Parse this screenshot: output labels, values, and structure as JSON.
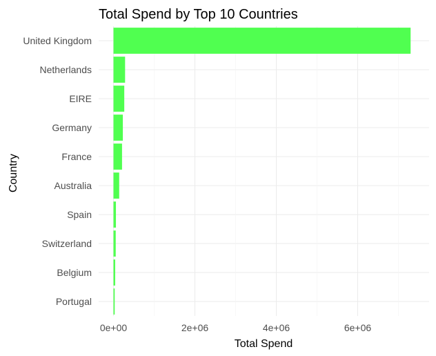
{
  "chart_data": {
    "type": "bar",
    "orientation": "horizontal",
    "title": "Total Spend by Top 10 Countries",
    "xlabel": "Total Spend",
    "ylabel": "Country",
    "categories": [
      "United Kingdom",
      "Netherlands",
      "EIRE",
      "Germany",
      "France",
      "Australia",
      "Spain",
      "Switzerland",
      "Belgium",
      "Portugal"
    ],
    "values": [
      7300000,
      285000,
      265000,
      230000,
      210000,
      140000,
      60000,
      55000,
      42000,
      30000
    ],
    "xlim": [
      0,
      7300000
    ],
    "xticks": [
      0,
      2000000,
      4000000,
      6000000
    ],
    "xtick_labels": [
      "0e+00",
      "2e+06",
      "4e+06",
      "6e+06"
    ],
    "bar_color": "#4dff4d",
    "grid": true,
    "legend": "none"
  }
}
